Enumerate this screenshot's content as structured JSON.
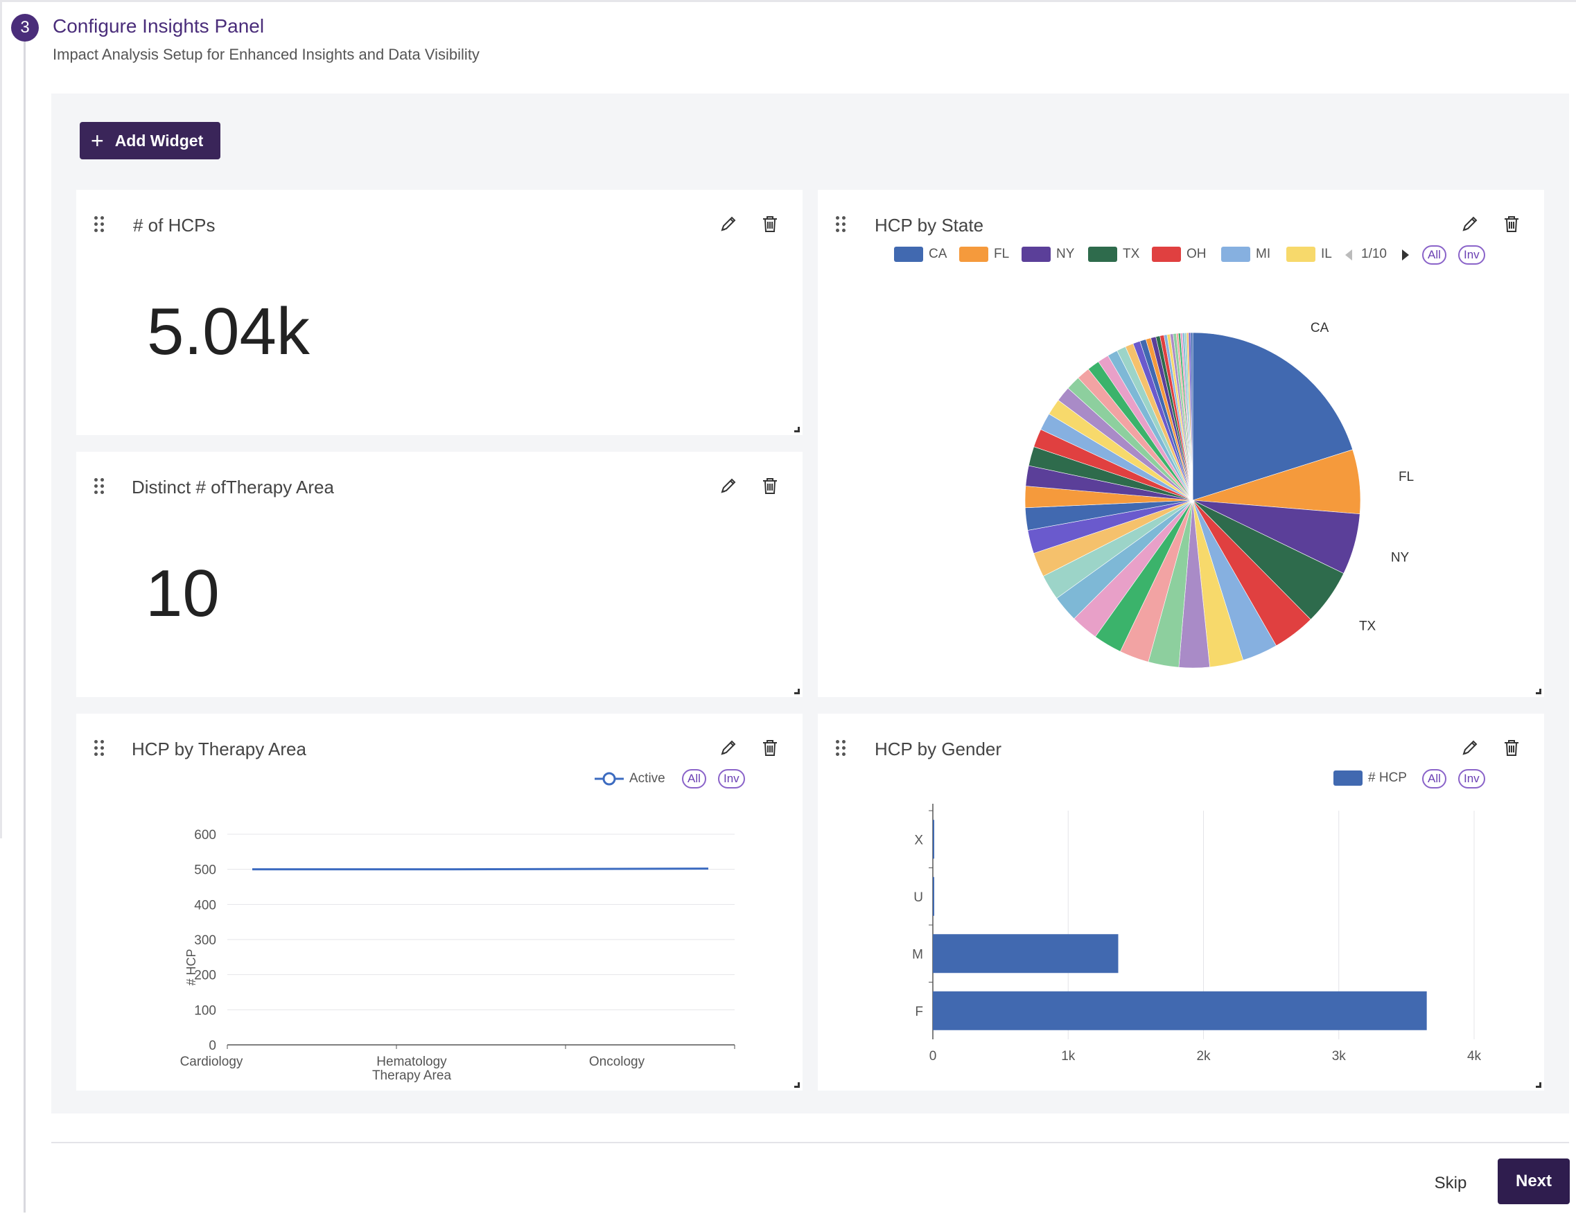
{
  "step": {
    "number": "3",
    "title": "Configure Insights Panel",
    "subtitle": "Impact Analysis Setup for Enhanced Insights and Data Visibility"
  },
  "toolbar": {
    "add_widget_label": "Add Widget"
  },
  "widgets": {
    "hcps": {
      "title": "# of HCPs",
      "value": "5.04k"
    },
    "therapy_count": {
      "title": "Distinct # ofTherapy Area",
      "value": "10"
    },
    "state": {
      "title": "HCP by State",
      "legend": [
        {
          "label": "CA",
          "color": "#4169b0"
        },
        {
          "label": "FL",
          "color": "#f59a3c"
        },
        {
          "label": "NY",
          "color": "#5b3f99"
        },
        {
          "label": "TX",
          "color": "#2e6b4c"
        },
        {
          "label": "OH",
          "color": "#e04040"
        },
        {
          "label": "MI",
          "color": "#86b0e0"
        },
        {
          "label": "IL",
          "color": "#f7d96b"
        }
      ],
      "pager": "1/10",
      "all_label": "All",
      "inv_label": "Inv"
    },
    "therapy_area": {
      "title": "HCP by Therapy Area",
      "legend_label": "Active",
      "all_label": "All",
      "inv_label": "Inv"
    },
    "gender": {
      "title": "HCP by Gender",
      "legend_label": "# HCP",
      "all_label": "All",
      "inv_label": "Inv"
    }
  },
  "footer": {
    "skip_label": "Skip",
    "next_label": "Next"
  },
  "chart_data": [
    {
      "type": "pie",
      "title": "HCP by State",
      "labeled_slices": [
        {
          "label": "CA",
          "value": 0.205,
          "color": "#4169b0"
        },
        {
          "label": "FL",
          "value": 0.063,
          "color": "#f59a3c"
        },
        {
          "label": "NY",
          "value": 0.06,
          "color": "#5b3f99"
        },
        {
          "label": "TX",
          "value": 0.055,
          "color": "#2e6b4c"
        },
        {
          "label": "OH",
          "value": 0.042,
          "color": "#e04040"
        },
        {
          "label": "MI",
          "value": 0.035,
          "color": "#86b0e0"
        },
        {
          "label": "IL",
          "value": 0.033,
          "color": "#f7d96b"
        }
      ],
      "other_slices": [
        0.03,
        0.03,
        0.029,
        0.028,
        0.027,
        0.026,
        0.025,
        0.024,
        0.023,
        0.022,
        0.021,
        0.02,
        0.019,
        0.018,
        0.017,
        0.016,
        0.015,
        0.014,
        0.013,
        0.012,
        0.011,
        0.01,
        0.009,
        0.008,
        0.007,
        0.006,
        0.005,
        0.005,
        0.004,
        0.004,
        0.003,
        0.003,
        0.003,
        0.003,
        0.002,
        0.002,
        0.002,
        0.002,
        0.002,
        0.002,
        0.002,
        0.002
      ],
      "palette": [
        "#4169b0",
        "#f59a3c",
        "#5b3f99",
        "#2e6b4c",
        "#e04040",
        "#86b0e0",
        "#f7d96b",
        "#a98bc7",
        "#8dcf9e",
        "#f2a3a3",
        "#3bb36b",
        "#e8a0c8",
        "#7eb8d6",
        "#9cd4c8",
        "#f5c16c",
        "#6a5acd"
      ],
      "outer_labels": [
        "CA",
        "FL",
        "NY",
        "TX"
      ]
    },
    {
      "type": "line",
      "title": "HCP by Therapy Area",
      "categories": [
        "Cardiology",
        "Hematology",
        "Oncology"
      ],
      "series": [
        {
          "name": "Active",
          "values": [
            500,
            500,
            502
          ]
        }
      ],
      "xlabel": "Therapy Area",
      "ylabel": "# HCP",
      "yticks": [
        0,
        100,
        200,
        300,
        400,
        500,
        600
      ],
      "ylim": [
        0,
        600
      ],
      "legend": "top-right"
    },
    {
      "type": "bar",
      "orientation": "horizontal",
      "title": "HCP by Gender",
      "categories": [
        "X",
        "U",
        "M",
        "F"
      ],
      "series": [
        {
          "name": "# HCP",
          "values": [
            10,
            5,
            1370,
            3650
          ]
        }
      ],
      "xticks": [
        "0",
        "1k",
        "2k",
        "3k",
        "4k"
      ],
      "xlim": [
        0,
        4000
      ],
      "legend": "top-right"
    }
  ]
}
